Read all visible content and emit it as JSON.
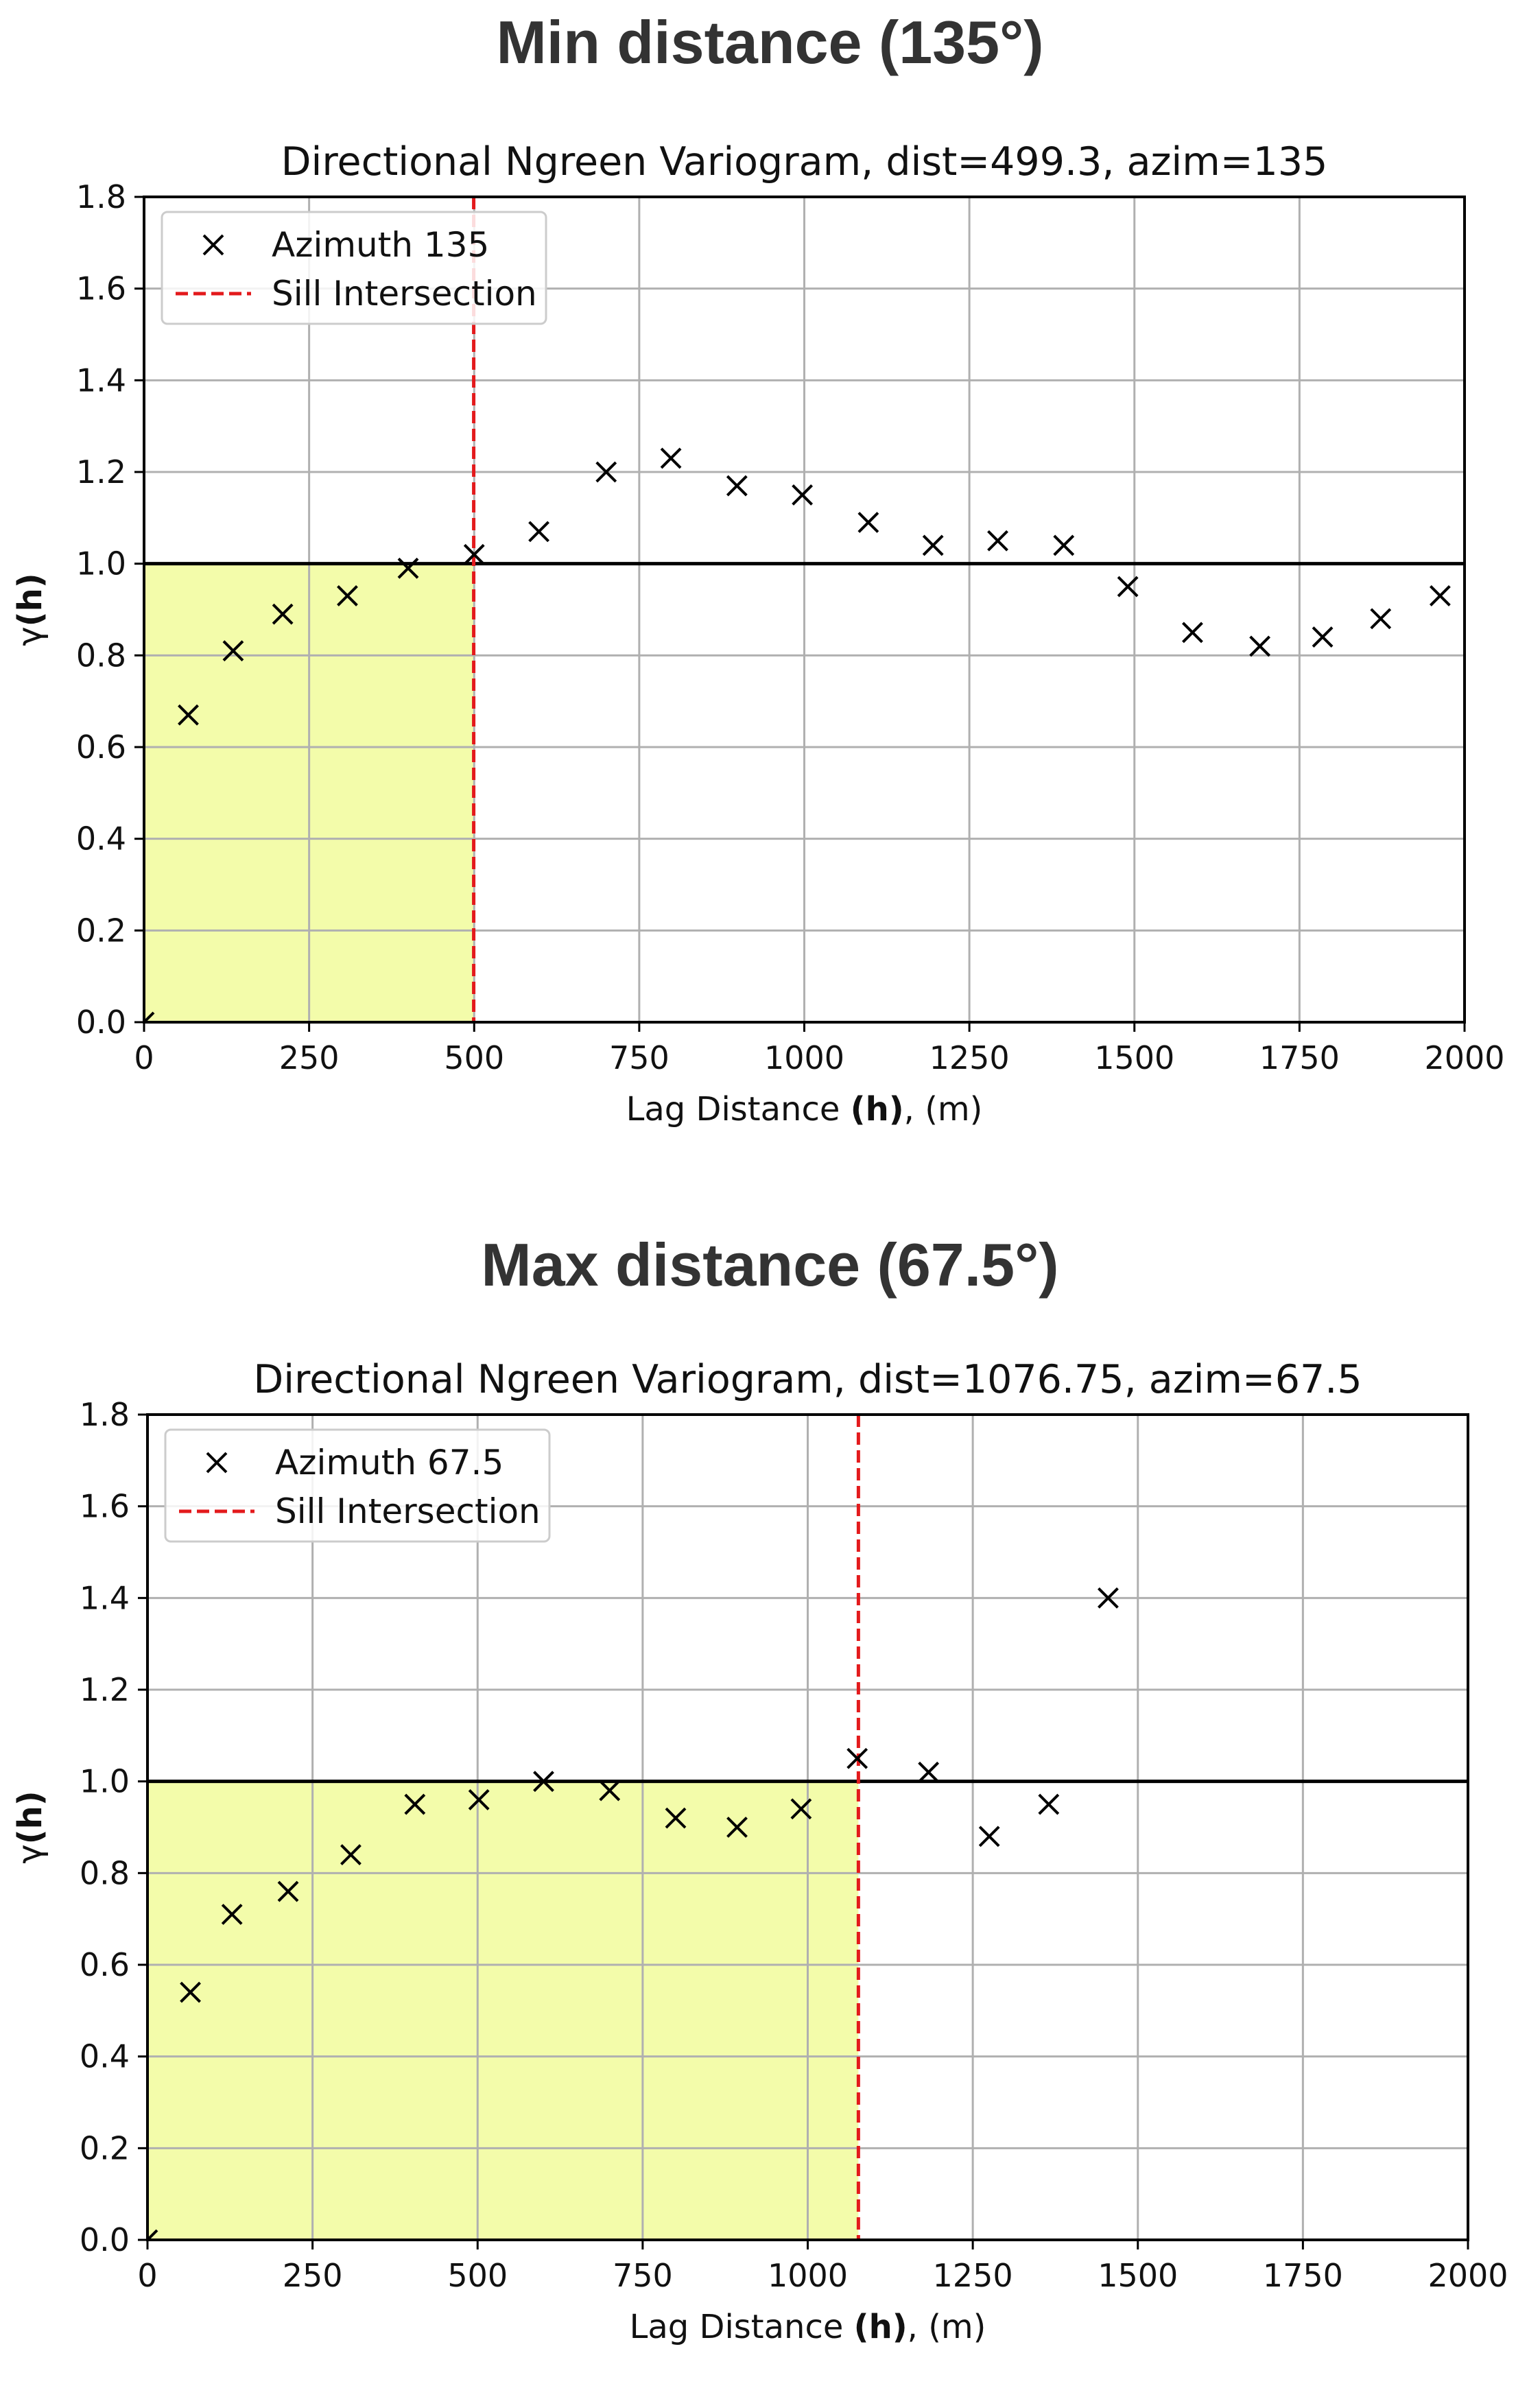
{
  "chart_data": [
    {
      "type": "scatter",
      "heading": "Min distance (135°)",
      "title": "Directional Ngreen Variogram, dist=499.3, azim=135",
      "xlabel_pre": "Lag Distance ",
      "xlabel_bold": "(h)",
      "xlabel_post": ", (m)",
      "ylabel": "γ(h)",
      "xlim": [
        0,
        2000
      ],
      "ylim": [
        0,
        1.8
      ],
      "xticks": [
        "0",
        "250",
        "500",
        "750",
        "1000",
        "1250",
        "1500",
        "1750",
        "2000"
      ],
      "yticks": [
        "0.0",
        "0.2",
        "0.4",
        "0.6",
        "0.8",
        "1.0",
        "1.2",
        "1.4",
        "1.6",
        "1.8"
      ],
      "grid": true,
      "legend_position": "top-left",
      "sill": 1.0,
      "sill_intersection": 499.3,
      "shaded_region": {
        "x": [
          0,
          499.3
        ],
        "y": [
          0,
          1.0
        ],
        "color": "#f3fcaa"
      },
      "series": [
        {
          "name": "Azimuth 135",
          "marker": "x",
          "color": "#000000",
          "x": [
            0,
            67,
            135,
            210,
            308,
            400,
            500,
            598,
            700,
            798,
            898,
            997,
            1097,
            1195,
            1293,
            1393,
            1490,
            1588,
            1690,
            1785,
            1873,
            1963
          ],
          "y": [
            0.0,
            0.67,
            0.81,
            0.89,
            0.93,
            0.99,
            1.02,
            1.07,
            1.2,
            1.23,
            1.17,
            1.15,
            1.09,
            1.04,
            1.05,
            1.04,
            0.95,
            0.85,
            0.82,
            0.84,
            0.88,
            0.93
          ]
        },
        {
          "name": "Sill Intersection",
          "style": "dashed",
          "color": "#e31a1c"
        }
      ]
    },
    {
      "type": "scatter",
      "heading": "Max distance (67.5°)",
      "title": "Directional Ngreen Variogram, dist=1076.75, azim=67.5",
      "xlabel_pre": "Lag Distance ",
      "xlabel_bold": "(h)",
      "xlabel_post": ", (m)",
      "ylabel": "γ(h)",
      "xlim": [
        0,
        2000
      ],
      "ylim": [
        0,
        1.8
      ],
      "xticks": [
        "0",
        "250",
        "500",
        "750",
        "1000",
        "1250",
        "1500",
        "1750",
        "2000"
      ],
      "yticks": [
        "0.0",
        "0.2",
        "0.4",
        "0.6",
        "0.8",
        "1.0",
        "1.2",
        "1.4",
        "1.6",
        "1.8"
      ],
      "grid": true,
      "legend_position": "top-left",
      "sill": 1.0,
      "sill_intersection": 1076.75,
      "shaded_region": {
        "x": [
          0,
          1076.75
        ],
        "y": [
          0,
          1.0
        ],
        "color": "#f3fcaa"
      },
      "series": [
        {
          "name": "Azimuth 67.5",
          "marker": "x",
          "color": "#000000",
          "x": [
            0,
            65,
            128,
            213,
            308,
            405,
            502,
            600,
            700,
            800,
            893,
            990,
            1075,
            1183,
            1275,
            1365,
            1455
          ],
          "y": [
            0.0,
            0.54,
            0.71,
            0.76,
            0.84,
            0.95,
            0.96,
            1.0,
            0.98,
            0.92,
            0.9,
            0.94,
            1.05,
            1.02,
            0.88,
            0.95,
            1.4
          ]
        },
        {
          "name": "Sill Intersection",
          "style": "dashed",
          "color": "#e31a1c"
        }
      ]
    }
  ]
}
